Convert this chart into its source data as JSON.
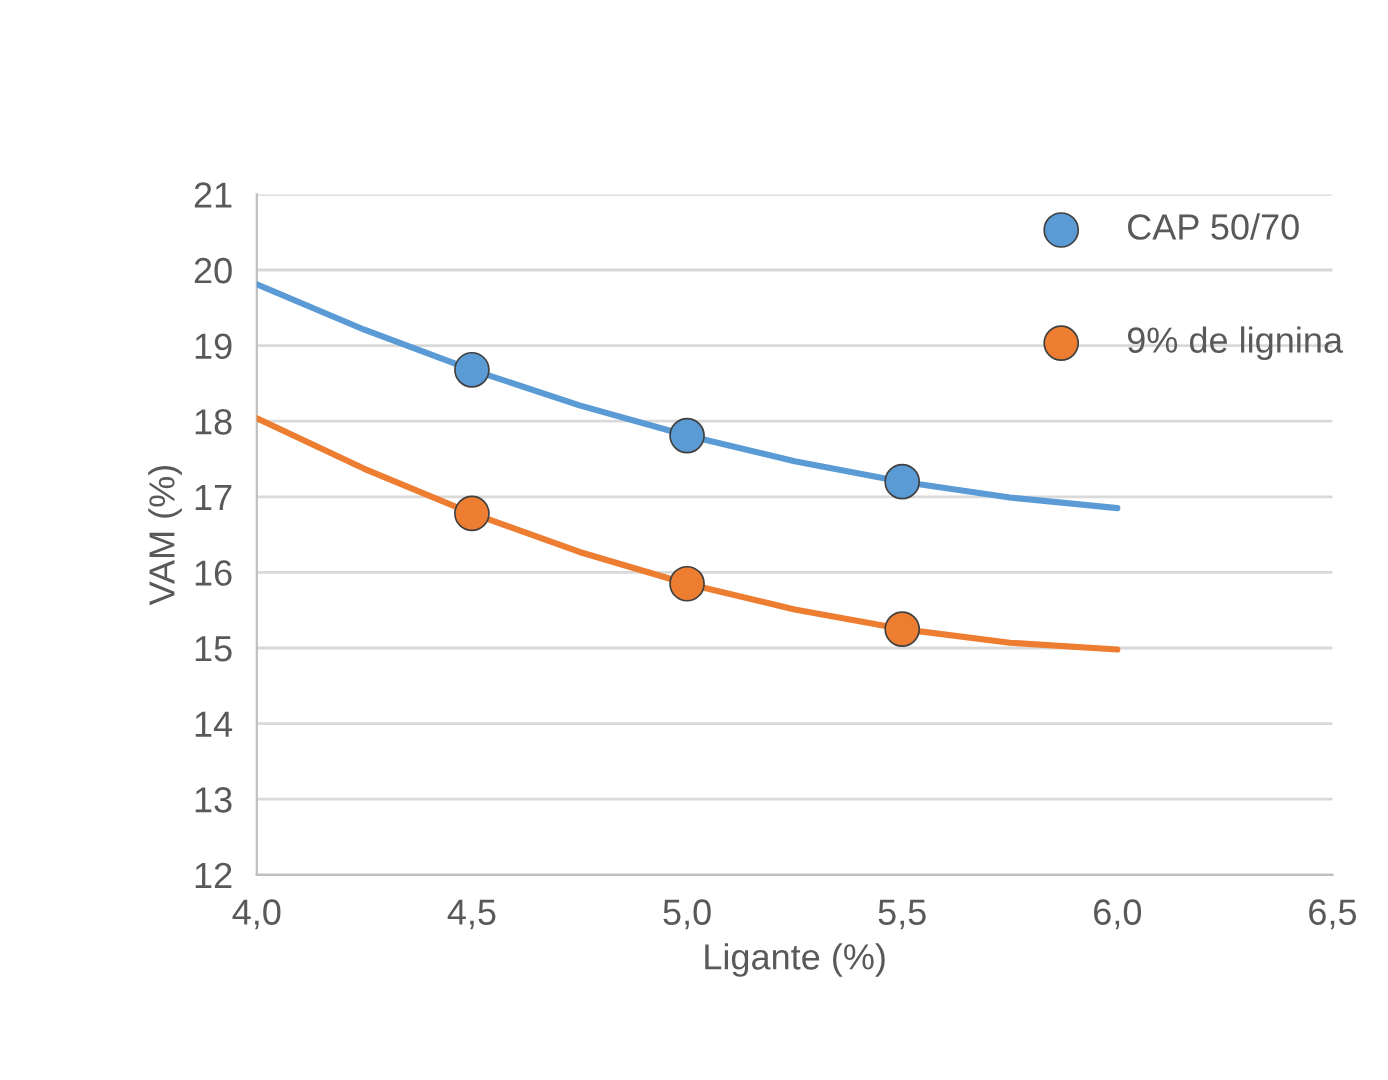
{
  "chart_data": {
    "type": "scatter",
    "xlabel": "Ligante (%)",
    "ylabel": "VAM (%)",
    "xlim": [
      4.0,
      6.5
    ],
    "xticks": [
      {
        "value": 4.0,
        "label": "4,0"
      },
      {
        "value": 4.5,
        "label": "4,5"
      },
      {
        "value": 5.0,
        "label": "5,0"
      },
      {
        "value": 5.5,
        "label": "5,5"
      },
      {
        "value": 6.0,
        "label": "6,0"
      },
      {
        "value": 6.5,
        "label": "6,5"
      }
    ],
    "ylim": [
      12,
      21
    ],
    "yticks": [
      12,
      13,
      14,
      15,
      16,
      17,
      18,
      19,
      20,
      21
    ],
    "grid": "y",
    "legend": "top right",
    "marker": "circle",
    "series": [
      {
        "name": "CAP 50/70",
        "color": "#5b9bd5",
        "x": [
          4.5,
          5.0,
          5.5
        ],
        "values": [
          18.68,
          17.81,
          17.2
        ]
      },
      {
        "name": "9% de lignina",
        "color": "#ed7d31",
        "x": [
          4.5,
          5.0,
          5.5
        ],
        "values": [
          16.78,
          15.85,
          15.25
        ]
      },
      {
        "type": "line",
        "marker": "none",
        "color": "#5b9bd5",
        "x": [
          4.0,
          4.25,
          4.5,
          4.75,
          5.0,
          5.25,
          5.5,
          5.75,
          6.0
        ],
        "values": [
          19.81,
          19.21,
          18.68,
          18.21,
          17.81,
          17.47,
          17.2,
          16.99,
          16.85
        ]
      },
      {
        "type": "line",
        "marker": "none",
        "color": "#ed7d31",
        "x": [
          4.0,
          4.25,
          4.5,
          4.75,
          5.0,
          5.25,
          5.5,
          5.75,
          6.0
        ],
        "values": [
          18.04,
          17.37,
          16.78,
          16.27,
          15.85,
          15.51,
          15.25,
          15.07,
          14.98
        ]
      }
    ]
  }
}
